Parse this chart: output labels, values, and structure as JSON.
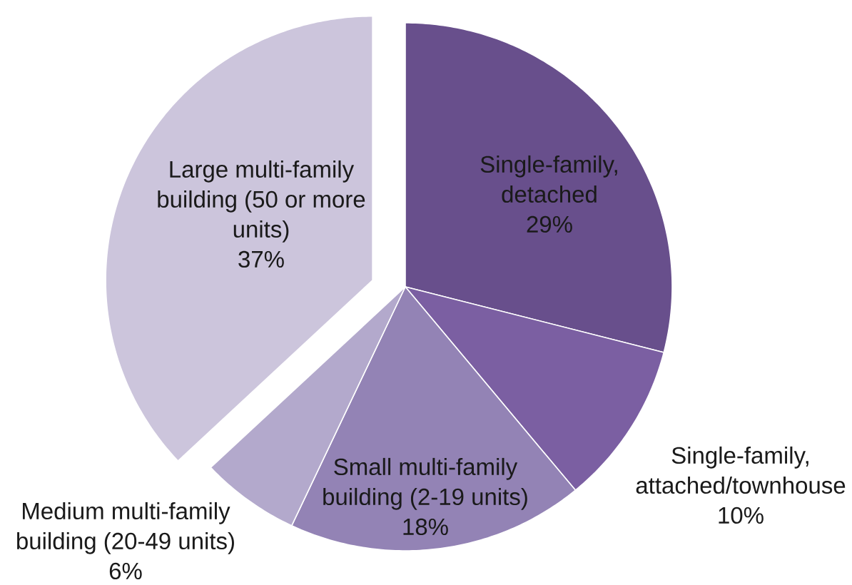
{
  "chart_data": {
    "type": "pie",
    "categories": [
      "Single-family, detached",
      "Single-family, attached/townhouse",
      "Small multi-family building (2-19 units)",
      "Medium multi-family building (20-49 units)",
      "Large multi-family building (50 or more units)"
    ],
    "values": [
      29,
      10,
      18,
      6,
      37
    ],
    "colors": [
      "#684f8c",
      "#7b5fa2",
      "#9383b5",
      "#b3a9cc",
      "#ccc5dc"
    ],
    "value_labels": [
      "29%",
      "10%",
      "18%",
      "6%",
      "37%"
    ]
  }
}
